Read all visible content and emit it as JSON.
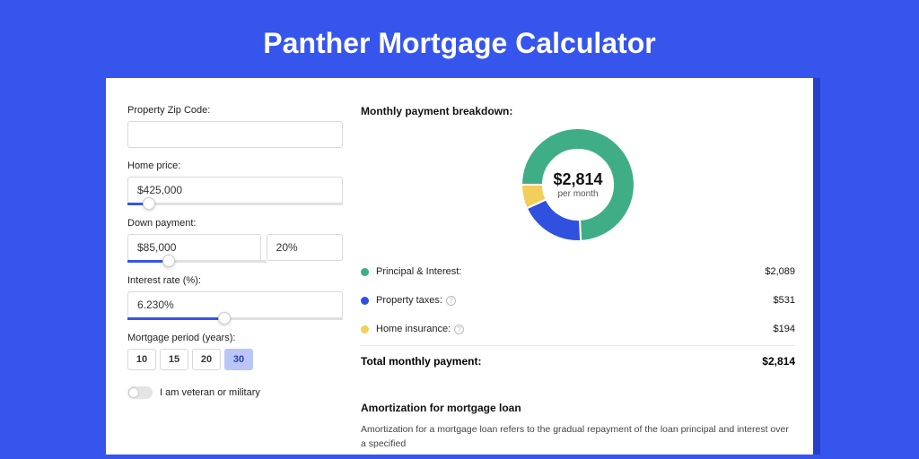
{
  "title": "Panther Mortgage Calculator",
  "colors": {
    "page_bg": "#3655ec",
    "card_shadow": "#2640c8",
    "slider_fill": "#3655ec",
    "period_active_bg": "#b9c6f7",
    "period_active_text": "#2c3fa8"
  },
  "form": {
    "zip": {
      "label": "Property Zip Code:",
      "value": ""
    },
    "home_price": {
      "label": "Home price:",
      "value": "$425,000",
      "slider_pct": 10
    },
    "down_payment": {
      "label": "Down payment:",
      "value": "$85,000",
      "pct_value": "20%",
      "slider_pct": 30
    },
    "interest_rate": {
      "label": "Interest rate (%):",
      "value": "6.230%",
      "slider_pct": 45
    },
    "period": {
      "label": "Mortgage period (years):",
      "options": [
        "10",
        "15",
        "20",
        "30"
      ],
      "selected": "30"
    },
    "veteran": {
      "label": "I am veteran or military",
      "checked": false
    }
  },
  "breakdown": {
    "title": "Monthly payment breakdown:",
    "center_amount": "$2,814",
    "center_sub": "per month",
    "donut": {
      "size": 126,
      "inner_ratio": 0.62,
      "series": [
        {
          "label": "Principal & Interest:",
          "value": "$2,089",
          "pct": 74.2,
          "color": "#3fae87",
          "has_info": false
        },
        {
          "label": "Property taxes:",
          "value": "$531",
          "pct": 18.9,
          "color": "#3051e0",
          "has_info": true
        },
        {
          "label": "Home insurance:",
          "value": "$194",
          "pct": 6.9,
          "color": "#f2cf5b",
          "has_info": true
        }
      ],
      "start_angle_deg": -180
    },
    "total": {
      "label": "Total monthly payment:",
      "value": "$2,814"
    }
  },
  "amortization": {
    "title": "Amortization for mortgage loan",
    "text": "Amortization for a mortgage loan refers to the gradual repayment of the loan principal and interest over a specified"
  }
}
